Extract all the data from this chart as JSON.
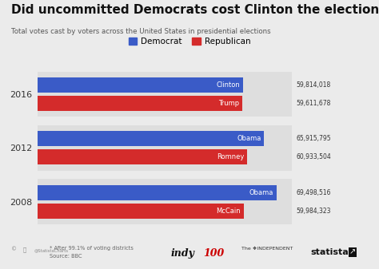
{
  "title": "Did uncommitted Democrats cost Clinton the election?",
  "subtitle": "Total votes cast by voters across the United States in presidential elections",
  "years": [
    "2016",
    "2012",
    "2008"
  ],
  "dem_candidates": [
    "Clinton",
    "Obama",
    "Obama"
  ],
  "rep_candidates": [
    "Trump",
    "Romney",
    "McCain"
  ],
  "dem_votes": [
    59814018,
    65915795,
    69498516
  ],
  "rep_votes": [
    59611678,
    60933504,
    59984323
  ],
  "dem_labels": [
    "59,814,018",
    "65,915,795",
    "69,498,516"
  ],
  "rep_labels": [
    "59,611,678",
    "60,933,504",
    "59,984,323"
  ],
  "dem_color": "#3a5bc7",
  "rep_color": "#d42b2b",
  "bg_color": "#ebebeb",
  "panel_color": "#dedede",
  "title_color": "#111111",
  "subtitle_color": "#555555",
  "label_color": "#333333",
  "footnote1": "* After 99.1% of voting districts",
  "footnote2": "Source: BBC",
  "max_val": 74000000,
  "bar_height": 0.28,
  "bar_gap": 0.06
}
